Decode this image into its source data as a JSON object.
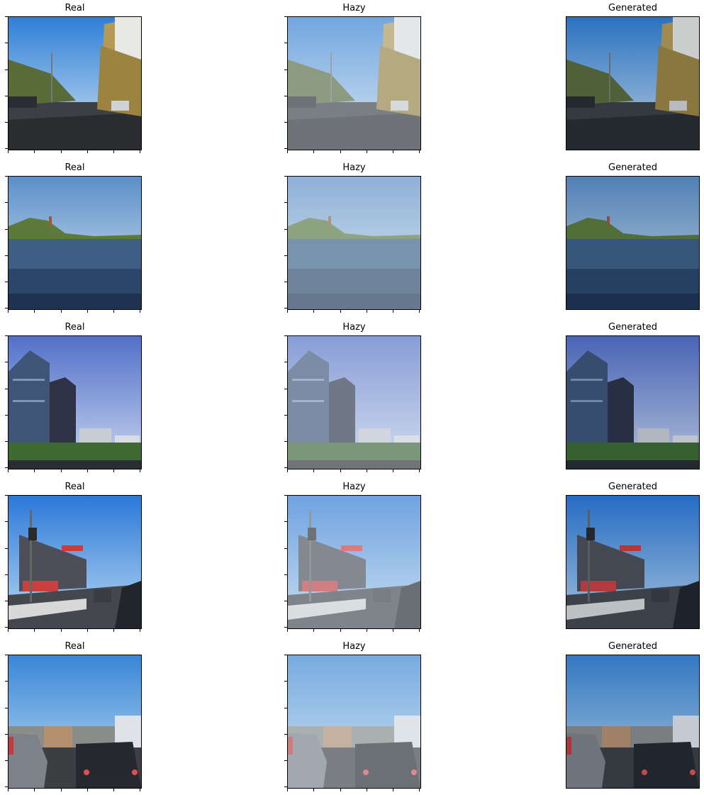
{
  "columns": [
    "Real",
    "Hazy",
    "Generated"
  ],
  "rows": [
    {
      "scene": "tree-lined street with parked cars",
      "titles": [
        "Real",
        "Hazy",
        "Generated"
      ]
    },
    {
      "scene": "lake with pagoda on hill",
      "titles": [
        "Real",
        "Hazy",
        "Generated"
      ]
    },
    {
      "scene": "glass office towers",
      "titles": [
        "Real",
        "Hazy",
        "Generated"
      ]
    },
    {
      "scene": "shopping mall beside road",
      "titles": [
        "Real",
        "Hazy",
        "Generated"
      ]
    },
    {
      "scene": "traffic with car rear lights",
      "titles": [
        "Real",
        "Hazy",
        "Generated"
      ]
    }
  ]
}
